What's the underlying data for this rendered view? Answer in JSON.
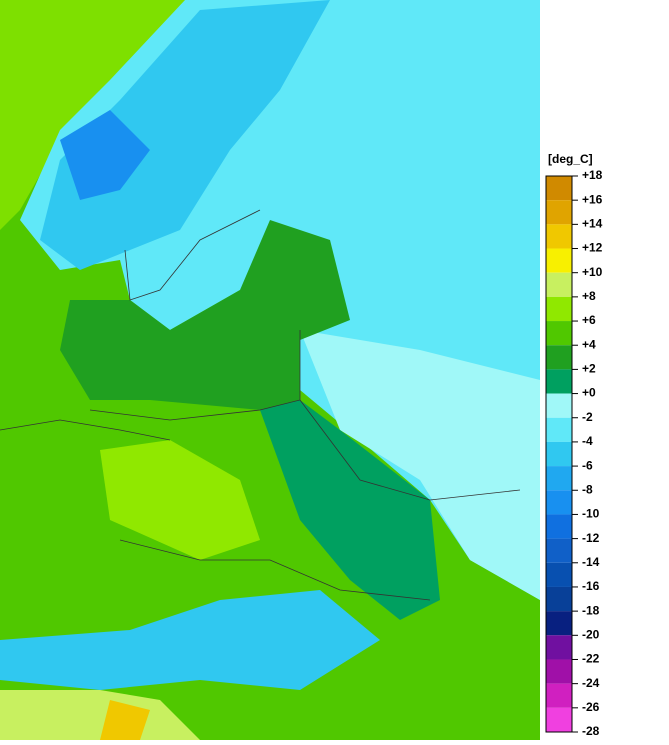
{
  "legend": {
    "unit": "[deg_C]",
    "ticks": [
      {
        "value": 18,
        "label": "+18"
      },
      {
        "value": 16,
        "label": "+16"
      },
      {
        "value": 14,
        "label": "+14"
      },
      {
        "value": 12,
        "label": "+12"
      },
      {
        "value": 10,
        "label": "+10"
      },
      {
        "value": 8,
        "label": "+8"
      },
      {
        "value": 6,
        "label": "+6"
      },
      {
        "value": 4,
        "label": "+4"
      },
      {
        "value": 2,
        "label": "+2"
      },
      {
        "value": 0,
        "label": "+0"
      },
      -2,
      -4,
      -6,
      -8,
      -10,
      -12,
      -14,
      -16,
      -18,
      -20,
      -22,
      -24,
      -26,
      -28
    ],
    "colors": [
      "#d08a00",
      "#e0a400",
      "#f0c800",
      "#f8f000",
      "#c8f060",
      "#90e800",
      "#50c800",
      "#20a020",
      "#00a060",
      "#a0f8f8",
      "#60e8f8",
      "#30c8f0",
      "#20a8f0",
      "#1890f0",
      "#1070e0",
      "#1060c8",
      "#0850b0",
      "#084098",
      "#082080",
      "#7010a0",
      "#a010a8",
      "#d020c0",
      "#f040e0"
    ]
  }
}
